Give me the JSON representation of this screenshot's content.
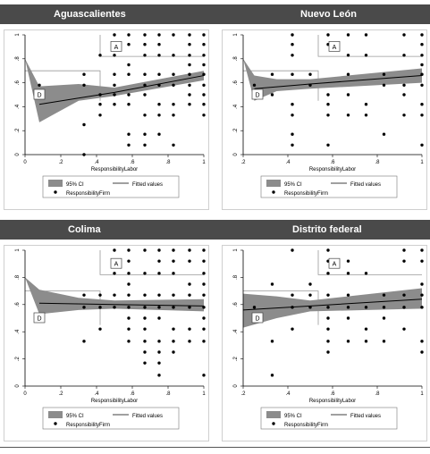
{
  "headers": {
    "top_left": "Aguascalientes",
    "top_right": "Nuevo León",
    "bottom_left": "Colima",
    "bottom_right": "Distrito federal"
  },
  "footnote": "",
  "colors": {
    "header_bg": "#4a4a4a",
    "band": "#8c8c8c",
    "fit": "#000000",
    "box": "#999999"
  },
  "chart_data": [
    {
      "type": "scatter",
      "title": "Aguascalientes",
      "xlabel": "ResponsibilityLabor",
      "ylabel": "",
      "xlim": [
        0,
        1
      ],
      "ylim": [
        0,
        1
      ],
      "xticks": [
        "0",
        ".2",
        ".4",
        ".6",
        ".8",
        "1"
      ],
      "yticks": [
        "0",
        ".2",
        ".4",
        ".6",
        ".8",
        "1"
      ],
      "box_labels": [
        "A",
        "D"
      ],
      "fit": [
        [
          0.08,
          0.42
        ],
        [
          0.5,
          0.52
        ],
        [
          1,
          0.66
        ]
      ],
      "ci_lower": [
        [
          0.08,
          0.27
        ],
        [
          0.3,
          0.45
        ],
        [
          0.5,
          0.49
        ],
        [
          1,
          0.62
        ]
      ],
      "ci_upper": [
        [
          0.0,
          0.8
        ],
        [
          0.08,
          0.57
        ],
        [
          0.3,
          0.59
        ],
        [
          0.5,
          0.56
        ],
        [
          1,
          0.7
        ]
      ],
      "legend": [
        "95% CI",
        "Fitted values",
        "ResponsibilityFirm"
      ],
      "points": [
        [
          0.08,
          0.58
        ],
        [
          0.33,
          0.67
        ],
        [
          0.33,
          0.58
        ],
        [
          0.33,
          0.25
        ],
        [
          0.33,
          0.0
        ],
        [
          0.42,
          0.83
        ],
        [
          0.42,
          0.5
        ],
        [
          0.42,
          0.42
        ],
        [
          0.42,
          0.33
        ],
        [
          0.5,
          1
        ],
        [
          0.5,
          0.92
        ],
        [
          0.5,
          0.83
        ],
        [
          0.5,
          0.67
        ],
        [
          0.5,
          0.58
        ],
        [
          0.5,
          0.5
        ],
        [
          0.5,
          0.42
        ],
        [
          0.58,
          1
        ],
        [
          0.58,
          0.92
        ],
        [
          0.58,
          0.75
        ],
        [
          0.58,
          0.67
        ],
        [
          0.58,
          0.5
        ],
        [
          0.58,
          0.42
        ],
        [
          0.58,
          0.17
        ],
        [
          0.58,
          0.08
        ],
        [
          0.67,
          1
        ],
        [
          0.67,
          0.92
        ],
        [
          0.67,
          0.83
        ],
        [
          0.67,
          0.67
        ],
        [
          0.67,
          0.58
        ],
        [
          0.67,
          0.5
        ],
        [
          0.67,
          0.33
        ],
        [
          0.67,
          0.17
        ],
        [
          0.67,
          0.08
        ],
        [
          0.75,
          1
        ],
        [
          0.75,
          0.92
        ],
        [
          0.75,
          0.83
        ],
        [
          0.75,
          0.67
        ],
        [
          0.75,
          0.58
        ],
        [
          0.75,
          0.42
        ],
        [
          0.75,
          0.33
        ],
        [
          0.75,
          0.17
        ],
        [
          0.83,
          1
        ],
        [
          0.83,
          0.83
        ],
        [
          0.83,
          0.67
        ],
        [
          0.83,
          0.58
        ],
        [
          0.83,
          0.42
        ],
        [
          0.83,
          0.33
        ],
        [
          0.83,
          0.08
        ],
        [
          0.92,
          1
        ],
        [
          0.92,
          0.92
        ],
        [
          0.92,
          0.83
        ],
        [
          0.92,
          0.75
        ],
        [
          0.92,
          0.67
        ],
        [
          0.92,
          0.58
        ],
        [
          0.92,
          0.5
        ],
        [
          0.92,
          0.42
        ],
        [
          1,
          1
        ],
        [
          1,
          0.92
        ],
        [
          1,
          0.83
        ],
        [
          1,
          0.75
        ],
        [
          1,
          0.67
        ],
        [
          1,
          0.58
        ],
        [
          1,
          0.5
        ],
        [
          1,
          0.42
        ],
        [
          1,
          0.33
        ]
      ]
    },
    {
      "type": "scatter",
      "title": "Nuevo León",
      "xlabel": "ResponsibilityLabor",
      "ylabel": "",
      "xlim": [
        0.2,
        1
      ],
      "ylim": [
        0,
        1
      ],
      "xticks": [
        ".2",
        ".4",
        ".6",
        ".8",
        "1"
      ],
      "yticks": [
        "0",
        ".2",
        ".4",
        ".6",
        ".8",
        "1"
      ],
      "box_labels": [
        "A",
        "D"
      ],
      "fit": [
        [
          0.25,
          0.55
        ],
        [
          0.5,
          0.59
        ],
        [
          1,
          0.66
        ]
      ],
      "ci_lower": [
        [
          0.25,
          0.45
        ],
        [
          0.35,
          0.53
        ],
        [
          0.5,
          0.55
        ],
        [
          1,
          0.6
        ]
      ],
      "ci_upper": [
        [
          0.2,
          0.8
        ],
        [
          0.25,
          0.66
        ],
        [
          0.35,
          0.63
        ],
        [
          0.5,
          0.63
        ],
        [
          1,
          0.72
        ]
      ],
      "legend": [
        "95% CI",
        "Fitted values",
        "ResponsibilityFirm"
      ],
      "points": [
        [
          0.25,
          0.58
        ],
        [
          0.33,
          0.67
        ],
        [
          0.33,
          0.5
        ],
        [
          0.42,
          1
        ],
        [
          0.42,
          0.92
        ],
        [
          0.42,
          0.83
        ],
        [
          0.42,
          0.67
        ],
        [
          0.42,
          0.42
        ],
        [
          0.42,
          0.33
        ],
        [
          0.42,
          0.17
        ],
        [
          0.42,
          0.08
        ],
        [
          0.5,
          0.67
        ],
        [
          0.5,
          0.58
        ],
        [
          0.58,
          1
        ],
        [
          0.58,
          0.92
        ],
        [
          0.58,
          0.5
        ],
        [
          0.58,
          0.42
        ],
        [
          0.58,
          0.33
        ],
        [
          0.58,
          0.08
        ],
        [
          0.67,
          1
        ],
        [
          0.67,
          0.83
        ],
        [
          0.67,
          0.67
        ],
        [
          0.67,
          0.5
        ],
        [
          0.67,
          0.33
        ],
        [
          0.75,
          1
        ],
        [
          0.75,
          0.83
        ],
        [
          0.75,
          0.42
        ],
        [
          0.75,
          0.33
        ],
        [
          0.83,
          0.67
        ],
        [
          0.83,
          0.58
        ],
        [
          0.83,
          0.17
        ],
        [
          0.92,
          1
        ],
        [
          0.92,
          0.83
        ],
        [
          0.92,
          0.58
        ],
        [
          0.92,
          0.5
        ],
        [
          0.92,
          0.33
        ],
        [
          1,
          1
        ],
        [
          1,
          0.92
        ],
        [
          1,
          0.83
        ],
        [
          1,
          0.75
        ],
        [
          1,
          0.67
        ],
        [
          1,
          0.58
        ],
        [
          1,
          0.42
        ],
        [
          1,
          0.33
        ],
        [
          1,
          0.08
        ]
      ]
    },
    {
      "type": "scatter",
      "title": "Colima",
      "xlabel": "ResponsibilityLabor",
      "ylabel": "",
      "xlim": [
        0,
        1
      ],
      "ylim": [
        0,
        1
      ],
      "xticks": [
        "0",
        ".2",
        ".4",
        ".6",
        ".8",
        "1"
      ],
      "yticks": [
        "0",
        ".2",
        ".4",
        ".6",
        ".8",
        "1"
      ],
      "box_labels": [
        "A",
        "D"
      ],
      "fit": [
        [
          0.08,
          0.61
        ],
        [
          0.5,
          0.6
        ],
        [
          1,
          0.59
        ]
      ],
      "ci_lower": [
        [
          0.08,
          0.53
        ],
        [
          0.3,
          0.56
        ],
        [
          0.5,
          0.57
        ],
        [
          1,
          0.55
        ]
      ],
      "ci_upper": [
        [
          0.0,
          0.8
        ],
        [
          0.08,
          0.71
        ],
        [
          0.3,
          0.65
        ],
        [
          0.5,
          0.63
        ],
        [
          1,
          0.64
        ]
      ],
      "legend": [
        "95% CI",
        "Fitted values",
        "ResponsibilityFirm"
      ],
      "points": [
        [
          0.33,
          0.67
        ],
        [
          0.33,
          0.58
        ],
        [
          0.33,
          0.33
        ],
        [
          0.42,
          0.67
        ],
        [
          0.42,
          0.58
        ],
        [
          0.42,
          0.42
        ],
        [
          0.5,
          1
        ],
        [
          0.5,
          0.92
        ],
        [
          0.5,
          0.83
        ],
        [
          0.5,
          0.67
        ],
        [
          0.5,
          0.58
        ],
        [
          0.58,
          1
        ],
        [
          0.58,
          0.92
        ],
        [
          0.58,
          0.83
        ],
        [
          0.58,
          0.75
        ],
        [
          0.58,
          0.67
        ],
        [
          0.58,
          0.58
        ],
        [
          0.58,
          0.5
        ],
        [
          0.58,
          0.42
        ],
        [
          0.58,
          0.33
        ],
        [
          0.67,
          1
        ],
        [
          0.67,
          0.83
        ],
        [
          0.67,
          0.67
        ],
        [
          0.67,
          0.58
        ],
        [
          0.67,
          0.5
        ],
        [
          0.67,
          0.42
        ],
        [
          0.67,
          0.33
        ],
        [
          0.67,
          0.25
        ],
        [
          0.67,
          0.17
        ],
        [
          0.75,
          1
        ],
        [
          0.75,
          0.92
        ],
        [
          0.75,
          0.83
        ],
        [
          0.75,
          0.67
        ],
        [
          0.75,
          0.58
        ],
        [
          0.75,
          0.5
        ],
        [
          0.75,
          0.33
        ],
        [
          0.75,
          0.25
        ],
        [
          0.75,
          0.17
        ],
        [
          0.75,
          0.08
        ],
        [
          0.83,
          1
        ],
        [
          0.83,
          0.92
        ],
        [
          0.83,
          0.83
        ],
        [
          0.83,
          0.67
        ],
        [
          0.83,
          0.58
        ],
        [
          0.83,
          0.42
        ],
        [
          0.83,
          0.33
        ],
        [
          0.83,
          0.25
        ],
        [
          0.92,
          1
        ],
        [
          0.92,
          0.92
        ],
        [
          0.92,
          0.75
        ],
        [
          0.92,
          0.67
        ],
        [
          0.92,
          0.58
        ],
        [
          0.92,
          0.42
        ],
        [
          0.92,
          0.33
        ],
        [
          1,
          1
        ],
        [
          1,
          0.92
        ],
        [
          1,
          0.83
        ],
        [
          1,
          0.75
        ],
        [
          1,
          0.67
        ],
        [
          1,
          0.58
        ],
        [
          1,
          0.5
        ],
        [
          1,
          0.42
        ],
        [
          1,
          0.33
        ],
        [
          1,
          0.08
        ]
      ]
    },
    {
      "type": "scatter",
      "title": "Distrito federal",
      "xlabel": "ResponsibilityLabor",
      "ylabel": "",
      "xlim": [
        0.2,
        1
      ],
      "ylim": [
        0,
        1
      ],
      "xticks": [
        ".2",
        ".4",
        ".6",
        ".8",
        "1"
      ],
      "yticks": [
        "0",
        ".2",
        ".4",
        ".6",
        ".8",
        "1"
      ],
      "box_labels": [
        "A",
        "D"
      ],
      "fit": [
        [
          0.2,
          0.56
        ],
        [
          0.5,
          0.59
        ],
        [
          1,
          0.64
        ]
      ],
      "ci_lower": [
        [
          0.2,
          0.43
        ],
        [
          0.35,
          0.5
        ],
        [
          0.5,
          0.55
        ],
        [
          1,
          0.57
        ]
      ],
      "ci_upper": [
        [
          0.2,
          0.68
        ],
        [
          0.35,
          0.66
        ],
        [
          0.5,
          0.63
        ],
        [
          1,
          0.72
        ]
      ],
      "legend": [
        "95% CI",
        "Fitted values",
        "ResponsibilityFirm"
      ],
      "points": [
        [
          0.25,
          0.58
        ],
        [
          0.33,
          0.75
        ],
        [
          0.33,
          0.33
        ],
        [
          0.33,
          0.08
        ],
        [
          0.42,
          1
        ],
        [
          0.42,
          0.67
        ],
        [
          0.42,
          0.58
        ],
        [
          0.42,
          0.42
        ],
        [
          0.5,
          0.75
        ],
        [
          0.5,
          0.67
        ],
        [
          0.5,
          0.58
        ],
        [
          0.58,
          1
        ],
        [
          0.58,
          0.92
        ],
        [
          0.58,
          0.83
        ],
        [
          0.58,
          0.67
        ],
        [
          0.58,
          0.58
        ],
        [
          0.58,
          0.5
        ],
        [
          0.58,
          0.42
        ],
        [
          0.58,
          0.33
        ],
        [
          0.58,
          0.25
        ],
        [
          0.67,
          0.92
        ],
        [
          0.67,
          0.83
        ],
        [
          0.67,
          0.67
        ],
        [
          0.67,
          0.58
        ],
        [
          0.67,
          0.5
        ],
        [
          0.67,
          0.33
        ],
        [
          0.75,
          0.83
        ],
        [
          0.75,
          0.58
        ],
        [
          0.75,
          0.42
        ],
        [
          0.75,
          0.33
        ],
        [
          0.83,
          0.67
        ],
        [
          0.83,
          0.58
        ],
        [
          0.83,
          0.5
        ],
        [
          0.83,
          0.33
        ],
        [
          0.92,
          1
        ],
        [
          0.92,
          0.92
        ],
        [
          0.92,
          0.67
        ],
        [
          0.92,
          0.58
        ],
        [
          0.92,
          0.42
        ],
        [
          1,
          1
        ],
        [
          1,
          0.92
        ],
        [
          1,
          0.75
        ],
        [
          1,
          0.67
        ],
        [
          1,
          0.58
        ],
        [
          1,
          0.33
        ],
        [
          1,
          0.25
        ]
      ]
    }
  ]
}
